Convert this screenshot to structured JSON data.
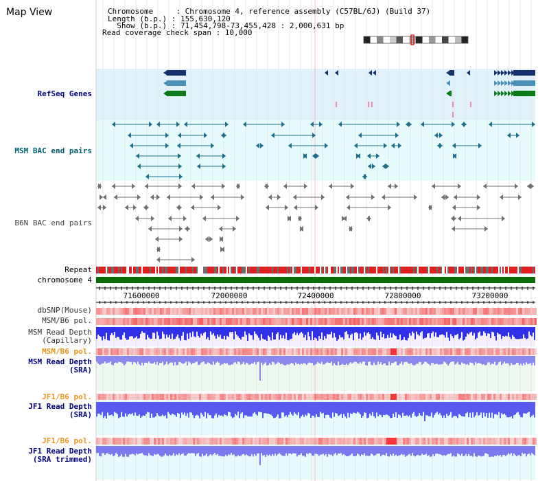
{
  "title": "Map View",
  "info": {
    "chromosome_line": "Chromosome     : Chromosome 4, reference assembly (C57BL/6J) (Build 37)",
    "length_line": "Length (b.p.) : 155,630,120",
    "show_line": "  Show (b.p.) : 71,454,798-73,455,428 : 2,000,631 bp",
    "coverage_line": "Read coverage check span : 10,000"
  },
  "tracks": {
    "refseq": "RefSeq Genes",
    "msm_bac": "MSM BAC end pairs",
    "b6n_bac": "B6N BAC end pairs",
    "repeat": "Repeat",
    "chromosome": "chromosome 4",
    "dbsnp": "dbSNP(Mouse)",
    "msm_b6_pol": "MSM/B6 pol.",
    "msm_read_depth_cap": "MSM Read Depth\n(Capillary)",
    "msm_b6_pol_2": "MSM/B6 pol.",
    "msm_read_depth_sra": "MSM Read Depth\n(SRA)",
    "jf1_b6_pol": "JF1/B6 pol.",
    "jf1_read_depth_sra": "JF1 Read Depth\n(SRA)",
    "jf1_b6_pol_2": "JF1/B6 pol.",
    "jf1_read_depth_trim": "JF1 Read Depth\n(SRA trimmed)"
  },
  "axis_ticks": [
    "71600000",
    "72000000",
    "72400000",
    "72800000",
    "73200000"
  ],
  "colors": {
    "refseq_bg": "#dff1fb",
    "msm_bac_bg": "#e6fbfb",
    "gene_navy": "#14326e",
    "gene_steel": "#4a90b8",
    "gene_green": "#0d7a1a",
    "msm_pair": "#1e6e8c",
    "b6n_pair": "#707070",
    "chrom_green": "#0b6e0b",
    "pol_red": "#e84a4a",
    "depth_blue": "#4a4ae8",
    "label_navy": "#000080",
    "label_orange": "#e8961e",
    "label_teal": "#006070"
  }
}
